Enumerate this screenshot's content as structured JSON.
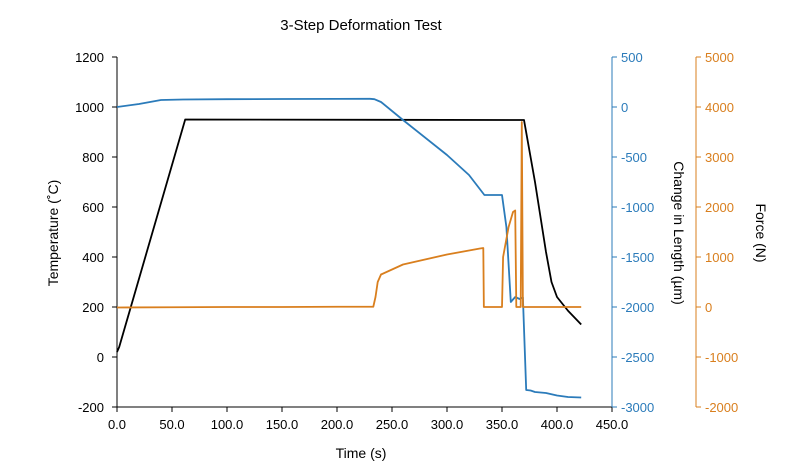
{
  "chart_data": {
    "type": "line",
    "title": "3-Step Deformation Test",
    "xlabel": "Time (s)",
    "xlim": [
      0,
      450
    ],
    "xticks": [
      "0.0",
      "50.0",
      "100.0",
      "150.0",
      "200.0",
      "250.0",
      "300.0",
      "350.0",
      "400.0",
      "450.0"
    ],
    "axes": [
      {
        "id": "temp",
        "label": "Temperature (˚C)",
        "ylim": [
          -200,
          1200
        ],
        "ticks": [
          "-200",
          "0",
          "200",
          "400",
          "600",
          "800",
          "1000",
          "1200"
        ],
        "color": "#000000",
        "side": "left"
      },
      {
        "id": "length",
        "label": "Change in Length (µm)",
        "ylim": [
          -3000,
          500
        ],
        "ticks": [
          "-3000",
          "-2500",
          "-2000",
          "-1500",
          "-1000",
          "-500",
          "0",
          "500"
        ],
        "color": "#2b7bba",
        "side": "right"
      },
      {
        "id": "force",
        "label": "Force (N)",
        "ylim": [
          -2000,
          5000
        ],
        "ticks": [
          "-2000",
          "-1000",
          "0",
          "1000",
          "2000",
          "3000",
          "4000",
          "5000"
        ],
        "color": "#d97f1e",
        "side": "right"
      }
    ],
    "series": [
      {
        "axis": "temp",
        "color": "#000000",
        "points": [
          [
            0,
            20
          ],
          [
            2,
            40
          ],
          [
            62,
            950
          ],
          [
            370,
            948
          ],
          [
            380,
            700
          ],
          [
            390,
            420
          ],
          [
            395,
            300
          ],
          [
            400,
            240
          ],
          [
            410,
            185
          ],
          [
            422,
            130
          ]
        ]
      },
      {
        "axis": "length",
        "color": "#2b7bba",
        "points": [
          [
            0,
            0
          ],
          [
            20,
            30
          ],
          [
            40,
            70
          ],
          [
            60,
            75
          ],
          [
            100,
            78
          ],
          [
            150,
            80
          ],
          [
            200,
            81
          ],
          [
            230,
            82
          ],
          [
            234,
            78
          ],
          [
            240,
            50
          ],
          [
            260,
            -130
          ],
          [
            300,
            -480
          ],
          [
            320,
            -680
          ],
          [
            334,
            -880
          ],
          [
            350,
            -880
          ],
          [
            352,
            -1040
          ],
          [
            354,
            -1200
          ],
          [
            358,
            -1950
          ],
          [
            362,
            -1900
          ],
          [
            366,
            -1920
          ],
          [
            369,
            -1905
          ],
          [
            372,
            -2830
          ],
          [
            376,
            -2835
          ],
          [
            380,
            -2850
          ],
          [
            390,
            -2860
          ],
          [
            400,
            -2885
          ],
          [
            410,
            -2900
          ],
          [
            422,
            -2905
          ]
        ]
      },
      {
        "axis": "force",
        "color": "#d97f1e",
        "points": [
          [
            0,
            -10
          ],
          [
            50,
            -5
          ],
          [
            100,
            0
          ],
          [
            150,
            0
          ],
          [
            200,
            5
          ],
          [
            233,
            5
          ],
          [
            235,
            200
          ],
          [
            237,
            500
          ],
          [
            240,
            650
          ],
          [
            260,
            850
          ],
          [
            300,
            1050
          ],
          [
            330,
            1170
          ],
          [
            333,
            1180
          ],
          [
            333.5,
            0
          ],
          [
            350,
            0
          ],
          [
            351,
            1000
          ],
          [
            356,
            1600
          ],
          [
            360,
            1900
          ],
          [
            362,
            1930
          ],
          [
            363,
            0
          ],
          [
            367,
            0
          ],
          [
            368,
            3700
          ],
          [
            369,
            0
          ],
          [
            422,
            0
          ]
        ]
      }
    ]
  }
}
